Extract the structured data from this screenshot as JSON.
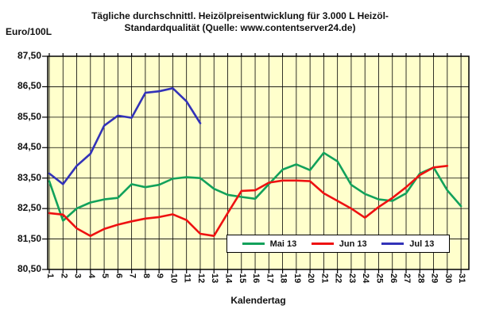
{
  "header": {
    "title_line1": "Tägliche durchschnittl. Heizölpreisentwicklung für 3.000 L Heizöl-",
    "title_line2": "Standardqualität (Quelle: www.contentserver24.de)"
  },
  "chart_data": {
    "type": "line",
    "title": "Tägliche durchschnittl. Heizölpreisentwicklung für 3.000 L Heizöl-Standardqualität (Quelle: www.contentserver24.de)",
    "y_unit": "Euro/100L",
    "x_label": "Kalendertag",
    "x": [
      1,
      2,
      3,
      4,
      5,
      6,
      7,
      8,
      9,
      10,
      11,
      12,
      13,
      14,
      15,
      16,
      17,
      18,
      19,
      20,
      21,
      22,
      23,
      24,
      25,
      26,
      27,
      28,
      29,
      30,
      31
    ],
    "ylim": [
      80.5,
      87.5
    ],
    "y_tick_values": [
      87.5,
      86.5,
      85.5,
      84.5,
      83.5,
      82.5,
      81.5,
      80.5
    ],
    "y_tick_labels": [
      "87,50",
      "86,50",
      "85,50",
      "84,50",
      "83,50",
      "82,50",
      "81,50",
      "80,50"
    ],
    "grid": true,
    "plot_bg_color": "#FFFFCC",
    "grid_color": "#000000",
    "legend_position": "inside-bottom-center",
    "series": [
      {
        "name": "Mai 13",
        "color": "#12A15B",
        "values": [
          83.4,
          82.1,
          82.5,
          82.7,
          82.8,
          82.85,
          83.3,
          83.2,
          83.28,
          83.48,
          83.53,
          83.5,
          83.15,
          82.95,
          82.88,
          82.82,
          83.3,
          83.78,
          83.95,
          83.76,
          84.33,
          84.05,
          83.28,
          82.98,
          82.8,
          82.75,
          83.0,
          83.65,
          83.85,
          83.1,
          82.58
        ]
      },
      {
        "name": "Jun 13",
        "color": "#EE1111",
        "values": [
          82.35,
          82.3,
          81.85,
          81.6,
          81.83,
          81.97,
          82.08,
          82.17,
          82.22,
          82.31,
          82.12,
          81.67,
          81.6,
          82.35,
          83.08,
          83.1,
          83.35,
          83.42,
          83.42,
          83.4,
          83.0,
          82.75,
          82.5,
          82.2,
          82.55,
          82.85,
          83.2,
          83.6,
          83.85,
          83.9
        ]
      },
      {
        "name": "Jul 13",
        "color": "#3232B8",
        "values": [
          83.65,
          83.3,
          83.9,
          84.3,
          85.22,
          85.55,
          85.48,
          86.3,
          86.35,
          86.45,
          86.02,
          85.3
        ]
      }
    ]
  }
}
